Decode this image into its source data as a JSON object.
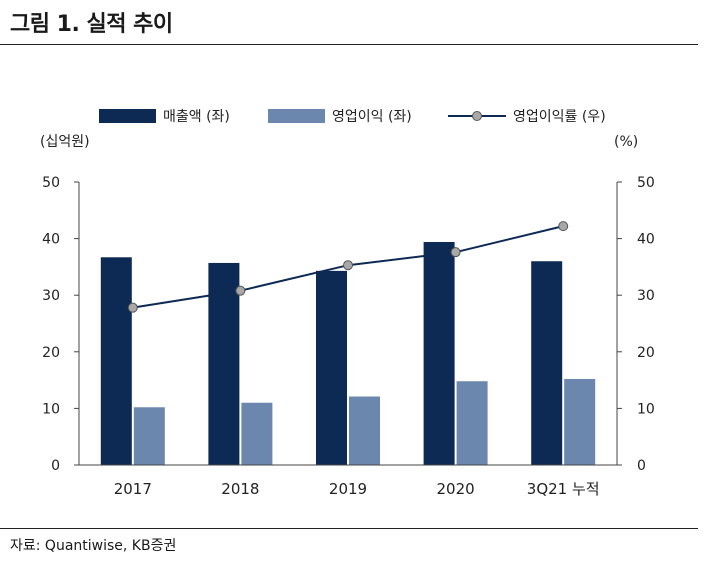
{
  "figure": {
    "title": "그림 1. 실적 추이",
    "source": "자료: Quantiwise, KB증권"
  },
  "chart_data": {
    "type": "bar",
    "categories": [
      "2017",
      "2018",
      "2019",
      "2020",
      "3Q21 누적"
    ],
    "series": [
      {
        "name": "매출액 (좌)",
        "kind": "bar",
        "axis": "left",
        "color": "#0d2a54",
        "values": [
          36.7,
          35.7,
          34.3,
          39.4,
          36.0
        ]
      },
      {
        "name": "영업이익 (좌)",
        "kind": "bar",
        "axis": "left",
        "color": "#6b87ad",
        "values": [
          10.2,
          11.0,
          12.1,
          14.8,
          15.2
        ]
      },
      {
        "name": "영업이익률 (우)",
        "kind": "line",
        "axis": "right",
        "color": "#0d2a54",
        "marker_color": "#a8a8a8",
        "values": [
          27.8,
          30.8,
          35.3,
          37.6,
          42.2
        ]
      }
    ],
    "left_axis": {
      "unit": "(십억원)",
      "ylim": [
        0,
        50
      ],
      "ticks": [
        "0",
        "10",
        "20",
        "30",
        "40",
        "50"
      ]
    },
    "right_axis": {
      "unit": "(%)",
      "ylim": [
        0,
        50
      ],
      "ticks": [
        "0",
        "10",
        "20",
        "30",
        "40",
        "50"
      ]
    },
    "grid": false,
    "legend_position": "top"
  }
}
